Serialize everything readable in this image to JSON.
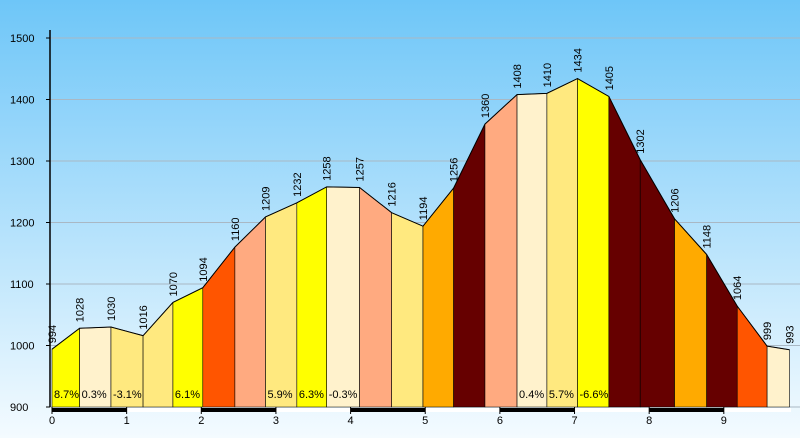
{
  "chart_data": {
    "type": "area",
    "x": [
      0,
      0.37,
      0.79,
      1.22,
      1.62,
      2.02,
      2.45,
      2.86,
      3.28,
      3.68,
      4.12,
      4.55,
      4.97,
      5.38,
      5.8,
      6.23,
      6.63,
      7.04,
      7.46,
      7.88,
      8.34,
      8.77,
      9.18,
      9.58,
      9.88
    ],
    "values": [
      994,
      1028,
      1030,
      1016,
      1070,
      1094,
      1160,
      1209,
      1232,
      1258,
      1257,
      1216,
      1194,
      1256,
      1360,
      1408,
      1410,
      1434,
      1405,
      1302,
      1206,
      1148,
      1064,
      999,
      993
    ],
    "segment_colors": [
      "#ffff00",
      "#fff2cc",
      "#ffe97f",
      "#ffe97f",
      "#ffff00",
      "#ff5500",
      "#ffaa80",
      "#ffe97f",
      "#ffff00",
      "#fff2cc",
      "#ffaa80",
      "#ffe97f",
      "#ffaa00",
      "#660000",
      "#ffaa80",
      "#fff2cc",
      "#ffe97f",
      "#ffff00",
      "#660000",
      "#660000",
      "#ffaa00",
      "#660000",
      "#ff5500",
      "#fff2cc"
    ],
    "segment_labels": [
      "8.7%",
      "0.3%",
      "-3.1%",
      null,
      "6.1%",
      null,
      null,
      "5.9%",
      "6.3%",
      "-0.3%",
      null,
      null,
      null,
      null,
      null,
      "0.4%",
      "5.7%",
      "-6.6%",
      null,
      null,
      null,
      null,
      null,
      null
    ],
    "xlim": [
      0,
      9.9
    ],
    "ylim": [
      900,
      1500
    ],
    "xticks": [
      0,
      1,
      2,
      3,
      4,
      5,
      6,
      7,
      8,
      9
    ],
    "yticks": [
      900,
      1000,
      1100,
      1200,
      1300,
      1400,
      1500
    ],
    "grid": true
  }
}
